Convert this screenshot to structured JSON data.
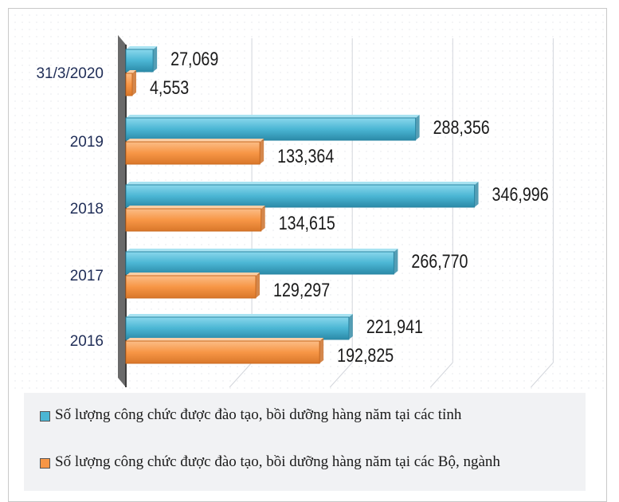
{
  "chart_data": {
    "type": "bar",
    "orientation": "horizontal",
    "categories": [
      "31/3/2020",
      "2019",
      "2018",
      "2017",
      "2016"
    ],
    "series": [
      {
        "name": "Số lượng công chức được đào tạo, bồi dưỡng hàng năm tại các tỉnh",
        "values": [
          27069,
          288356,
          346996,
          266770,
          221941
        ],
        "labels": [
          "27,069",
          "288,356",
          "346,996",
          "266,770",
          "221,941"
        ],
        "color": "#4bb6d4"
      },
      {
        "name": "Số lượng công chức được đào tạo, bồi dưỡng hàng năm tại các Bộ, ngành",
        "values": [
          4553,
          133364,
          134615,
          129297,
          192825
        ],
        "labels": [
          "4,553",
          "133,364",
          "134,615",
          "129,297",
          "192,825"
        ],
        "color": "#f79646"
      }
    ],
    "xlim": [
      0,
      400000
    ],
    "grid": true,
    "legend": "bottom"
  }
}
